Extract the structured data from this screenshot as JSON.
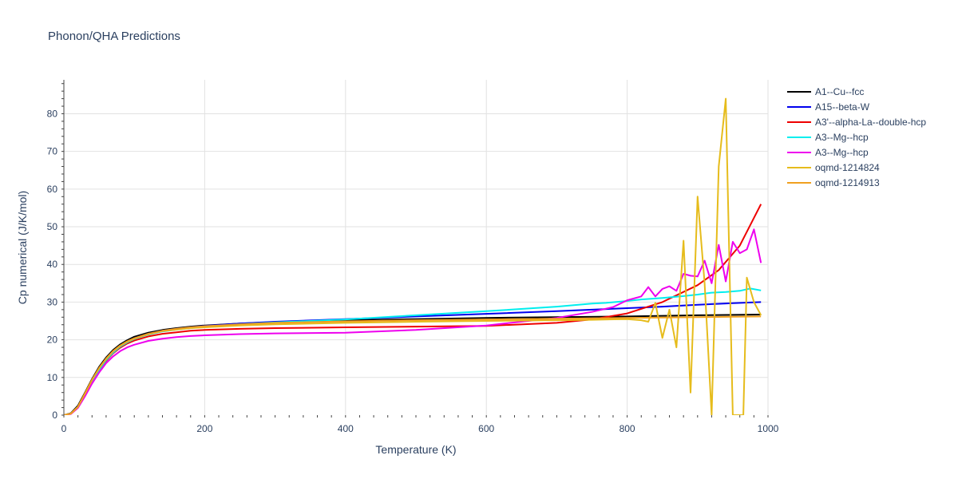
{
  "chart_data": {
    "type": "line",
    "title": "Phonon/QHA Predictions",
    "xlabel": "Temperature (K)",
    "ylabel": "Cp numerical (J/K/mol)",
    "xlim": [
      0,
      1000
    ],
    "ylim": [
      0,
      89
    ],
    "xticks": [
      0,
      200,
      400,
      600,
      800,
      1000
    ],
    "yticks": [
      0,
      10,
      20,
      30,
      40,
      50,
      60,
      70,
      80
    ],
    "grid": true,
    "legend_position": "right",
    "series": [
      {
        "name": "A1--Cu--fcc",
        "color": "#000000",
        "x": [
          0,
          10,
          20,
          30,
          40,
          50,
          60,
          70,
          80,
          90,
          100,
          120,
          140,
          160,
          180,
          200,
          250,
          300,
          400,
          500,
          600,
          700,
          800,
          900,
          990
        ],
        "y": [
          0,
          0.5,
          2.5,
          6.0,
          9.6,
          12.8,
          15.3,
          17.3,
          18.8,
          19.9,
          20.8,
          21.9,
          22.6,
          23.1,
          23.5,
          23.8,
          24.3,
          24.7,
          25.2,
          25.5,
          25.8,
          26.0,
          26.2,
          26.5,
          26.7
        ]
      },
      {
        "name": "A15--beta-W",
        "color": "#0000ee",
        "x": [
          0,
          10,
          20,
          30,
          40,
          50,
          60,
          70,
          80,
          90,
          100,
          120,
          140,
          160,
          180,
          200,
          250,
          300,
          400,
          500,
          600,
          700,
          750,
          800,
          850,
          900,
          950,
          990
        ],
        "y": [
          0,
          0.4,
          2.2,
          5.6,
          9.1,
          12.2,
          14.8,
          16.8,
          18.4,
          19.5,
          20.4,
          21.6,
          22.4,
          22.9,
          23.3,
          23.7,
          24.3,
          24.8,
          25.5,
          26.2,
          26.9,
          27.6,
          28.0,
          28.4,
          28.8,
          29.3,
          29.7,
          30.0
        ]
      },
      {
        "name": "A3'--alpha-La--double-hcp",
        "color": "#ee0000",
        "x": [
          0,
          10,
          20,
          30,
          40,
          50,
          60,
          70,
          80,
          90,
          100,
          120,
          140,
          160,
          180,
          200,
          250,
          300,
          400,
          500,
          600,
          700,
          750,
          800,
          850,
          900,
          930,
          960,
          990
        ],
        "y": [
          0,
          0.4,
          2.0,
          5.3,
          8.8,
          11.9,
          14.4,
          16.4,
          17.9,
          19.0,
          19.8,
          20.9,
          21.6,
          22.0,
          22.4,
          22.6,
          22.9,
          23.1,
          23.3,
          23.5,
          23.7,
          24.5,
          25.4,
          27.0,
          30.0,
          34.5,
          38.5,
          45.0,
          56.0
        ]
      },
      {
        "name": "A3--Mg--hcp",
        "color": "#00eeee",
        "x": [
          0,
          10,
          20,
          30,
          40,
          50,
          60,
          70,
          80,
          90,
          100,
          120,
          140,
          160,
          180,
          200,
          250,
          300,
          400,
          500,
          600,
          700,
          750,
          770,
          800,
          820,
          850,
          880,
          900,
          920,
          940,
          960,
          975,
          990
        ],
        "y": [
          0,
          0.4,
          2.1,
          5.4,
          8.9,
          12.0,
          14.6,
          16.6,
          18.2,
          19.3,
          20.2,
          21.4,
          22.2,
          22.7,
          23.1,
          23.4,
          24.1,
          24.6,
          25.4,
          26.5,
          27.6,
          28.8,
          29.6,
          29.8,
          30.3,
          30.7,
          31.1,
          31.6,
          32.0,
          32.5,
          32.7,
          33.0,
          33.6,
          33.1
        ]
      },
      {
        "name": "A3--Mg--hcp",
        "color": "#ee00ee",
        "x": [
          0,
          10,
          20,
          30,
          40,
          50,
          60,
          70,
          80,
          90,
          100,
          120,
          140,
          160,
          180,
          200,
          250,
          300,
          400,
          500,
          600,
          700,
          750,
          780,
          800,
          820,
          830,
          840,
          850,
          860,
          870,
          880,
          890,
          900,
          910,
          920,
          930,
          940,
          950,
          960,
          970,
          980,
          990
        ],
        "y": [
          0,
          0.3,
          1.9,
          5.0,
          8.4,
          11.3,
          13.8,
          15.6,
          17.0,
          18.0,
          18.7,
          19.7,
          20.3,
          20.7,
          21.0,
          21.2,
          21.5,
          21.7,
          21.9,
          22.6,
          23.8,
          25.8,
          27.4,
          28.7,
          30.5,
          31.5,
          34.0,
          31.5,
          33.5,
          34.2,
          33.0,
          37.5,
          37.0,
          36.8,
          41.0,
          35.0,
          45.2,
          35.5,
          46.0,
          43.0,
          44.0,
          49.3,
          40.4
        ]
      },
      {
        "name": "oqmd-1214824",
        "color": "#e6bc1c",
        "x": [
          0,
          10,
          20,
          30,
          40,
          50,
          60,
          70,
          80,
          90,
          100,
          120,
          140,
          160,
          180,
          200,
          250,
          300,
          400,
          500,
          600,
          700,
          750,
          800,
          820,
          830,
          840,
          850,
          860,
          870,
          880,
          890,
          900,
          910,
          920,
          930,
          940,
          950,
          960,
          965,
          970,
          980,
          990
        ],
        "y": [
          0,
          0.4,
          2.2,
          5.7,
          9.3,
          12.4,
          14.9,
          16.9,
          18.4,
          19.5,
          20.3,
          21.5,
          22.3,
          22.7,
          23.1,
          23.3,
          23.8,
          24.1,
          24.5,
          24.8,
          25.0,
          25.2,
          25.3,
          25.5,
          25.2,
          24.8,
          29.8,
          20.5,
          28.0,
          18.0,
          46.3,
          6.0,
          58.0,
          35.0,
          0,
          66.0,
          84.0,
          0,
          0,
          0,
          36.5,
          30.0,
          26.5
        ]
      },
      {
        "name": "oqmd-1214913",
        "color": "#f0a020",
        "x": [
          0,
          10,
          20,
          30,
          40,
          50,
          60,
          70,
          80,
          90,
          100,
          120,
          140,
          160,
          180,
          200,
          250,
          300,
          400,
          500,
          600,
          700,
          750,
          800,
          850,
          900,
          950,
          990
        ],
        "y": [
          0,
          0.4,
          2.2,
          5.8,
          9.4,
          12.5,
          15.0,
          17.0,
          18.5,
          19.6,
          20.4,
          21.6,
          22.4,
          22.9,
          23.3,
          23.6,
          24.1,
          24.5,
          24.9,
          25.2,
          25.4,
          25.6,
          25.7,
          25.8,
          25.9,
          26.0,
          26.1,
          26.2
        ]
      }
    ]
  }
}
